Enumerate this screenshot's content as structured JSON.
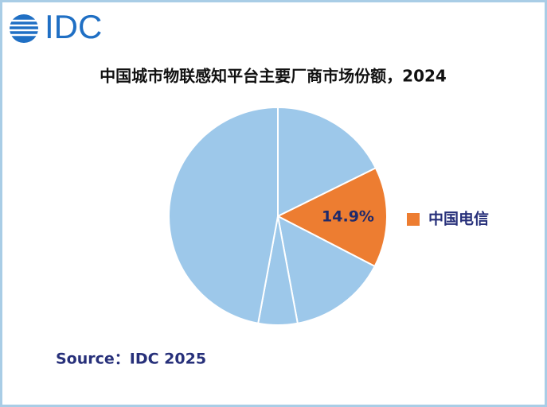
{
  "logo": "IDC",
  "chart_data": {
    "type": "pie",
    "title": "中国城市物联感知平台主要厂商市场份额，2024",
    "categories": [
      null,
      "中国电信",
      null,
      null,
      null
    ],
    "values": [
      17.7,
      14.9,
      14.5,
      5.8,
      47.1
    ],
    "value_labels": [
      null,
      "14.9%",
      null,
      null,
      null
    ],
    "colors": [
      "#9dc8ea",
      "#ed7d31",
      "#9dc8ea",
      "#9dc8ea",
      "#9dc8ea"
    ]
  },
  "source": "Source：IDC 2025"
}
